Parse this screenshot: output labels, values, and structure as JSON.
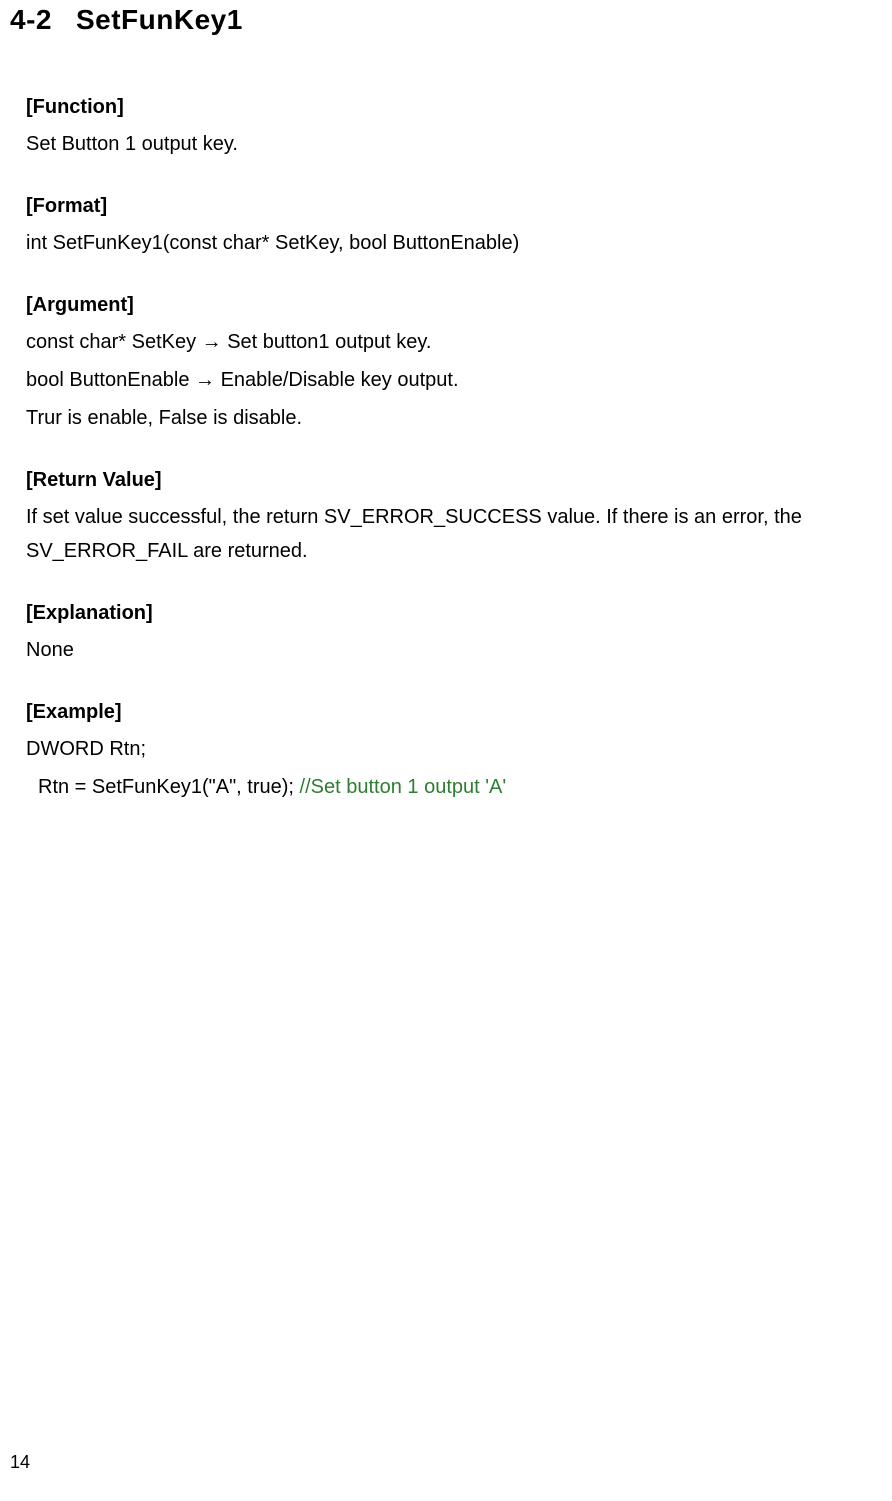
{
  "header": {
    "section_num": "4-2",
    "section_title": "SetFunKey1"
  },
  "labels": {
    "function": "[Function]",
    "format": "[Format]",
    "argument": "[Argument]",
    "return_value": "[Return Value]",
    "explanation": "[Explanation]",
    "example": "[Example]"
  },
  "function": {
    "desc": "Set Button 1 output key."
  },
  "format": {
    "signature": "int SetFunKey1(const char* SetKey, bool ButtonEnable)"
  },
  "argument": {
    "line1_a": "const char* SetKey ",
    "line1_b": " Set button1 output key.",
    "line2_a": "bool ButtonEnable ",
    "line2_b": " Enable/Disable key output.",
    "line3": "Trur is enable, False is disable."
  },
  "return_value": {
    "text": "If set value successful, the return SV_ERROR_SUCCESS value. If there is an error, the SV_ERROR_FAIL are returned."
  },
  "explanation": {
    "text": "None"
  },
  "example": {
    "line1": "DWORD Rtn;",
    "line2_code": "Rtn = SetFunKey1(\"A\", true); ",
    "line2_comment": "//Set button 1 output 'A'"
  },
  "page_number": "14",
  "arrow": "→"
}
